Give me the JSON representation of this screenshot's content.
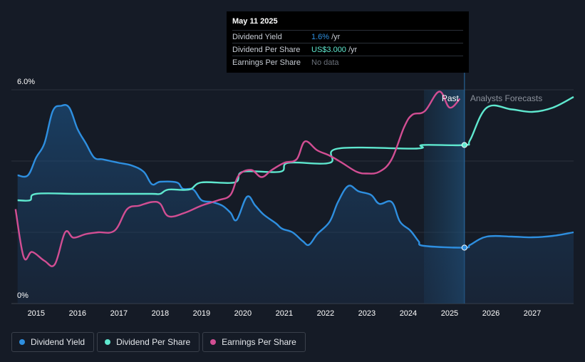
{
  "tooltip": {
    "date": "May 11 2025",
    "rows": [
      {
        "label": "Dividend Yield",
        "value": "1.6%",
        "unit": "/yr"
      },
      {
        "label": "Dividend Per Share",
        "value": "US$3.000",
        "unit": "/yr"
      },
      {
        "label": "Earnings Per Share",
        "value": "No data",
        "unit": ""
      }
    ]
  },
  "legend": [
    {
      "label": "Dividend Yield",
      "color": "#2e8fe0"
    },
    {
      "label": "Dividend Per Share",
      "color": "#5fe8cf"
    },
    {
      "label": "Earnings Per Share",
      "color": "#d24e93"
    }
  ],
  "chart_data": {
    "type": "line",
    "y_tick_labels": [
      "6.0%",
      "0%"
    ],
    "ylim": [
      0,
      6.0
    ],
    "xlim": [
      2014.4,
      2028.0
    ],
    "x_tick_labels": [
      "2015",
      "2016",
      "2017",
      "2018",
      "2019",
      "2020",
      "2021",
      "2022",
      "2023",
      "2024",
      "2025",
      "2026",
      "2027"
    ],
    "x_tick_values": [
      2015,
      2016,
      2017,
      2018,
      2019,
      2020,
      2021,
      2022,
      2023,
      2024,
      2025,
      2026,
      2027
    ],
    "region_labels": {
      "past": "Past",
      "forecast": "Analysts Forecasts"
    },
    "past_band": [
      2024.38,
      2025.36
    ],
    "current_x": 2025.36,
    "grid": "horizontal",
    "series": [
      {
        "name": "Dividend Yield",
        "color": "#2e8fe0",
        "fill": true,
        "points": [
          [
            2014.55,
            3.6
          ],
          [
            2014.8,
            3.6
          ],
          [
            2015.0,
            4.1
          ],
          [
            2015.2,
            4.5
          ],
          [
            2015.4,
            5.4
          ],
          [
            2015.6,
            5.55
          ],
          [
            2015.8,
            5.5
          ],
          [
            2016.0,
            4.9
          ],
          [
            2016.2,
            4.5
          ],
          [
            2016.4,
            4.1
          ],
          [
            2016.6,
            4.05
          ],
          [
            2016.8,
            4.0
          ],
          [
            2017.0,
            3.95
          ],
          [
            2017.3,
            3.88
          ],
          [
            2017.6,
            3.7
          ],
          [
            2017.8,
            3.35
          ],
          [
            2018.0,
            3.42
          ],
          [
            2018.4,
            3.4
          ],
          [
            2018.55,
            3.22
          ],
          [
            2018.8,
            3.2
          ],
          [
            2019.0,
            2.9
          ],
          [
            2019.25,
            2.85
          ],
          [
            2019.5,
            2.75
          ],
          [
            2019.7,
            2.55
          ],
          [
            2019.85,
            2.35
          ],
          [
            2020.1,
            3.0
          ],
          [
            2020.3,
            2.75
          ],
          [
            2020.5,
            2.5
          ],
          [
            2020.8,
            2.25
          ],
          [
            2020.95,
            2.1
          ],
          [
            2021.2,
            2.0
          ],
          [
            2021.45,
            1.75
          ],
          [
            2021.6,
            1.65
          ],
          [
            2021.8,
            1.95
          ],
          [
            2022.1,
            2.3
          ],
          [
            2022.3,
            2.85
          ],
          [
            2022.55,
            3.3
          ],
          [
            2022.8,
            3.15
          ],
          [
            2023.1,
            3.05
          ],
          [
            2023.3,
            2.8
          ],
          [
            2023.6,
            2.85
          ],
          [
            2023.8,
            2.3
          ],
          [
            2024.05,
            2.05
          ],
          [
            2024.25,
            1.75
          ],
          [
            2024.38,
            1.62
          ],
          [
            2025.36,
            1.57
          ],
          [
            2025.5,
            1.65
          ],
          [
            2025.9,
            1.88
          ],
          [
            2026.5,
            1.88
          ],
          [
            2027.0,
            1.86
          ],
          [
            2027.5,
            1.9
          ],
          [
            2028.0,
            2.0
          ]
        ]
      },
      {
        "name": "Dividend Per Share",
        "color": "#5fe8cf",
        "fill": false,
        "points": [
          [
            2014.55,
            2.9
          ],
          [
            2014.85,
            2.9
          ],
          [
            2015.0,
            3.08
          ],
          [
            2016.0,
            3.08
          ],
          [
            2017.0,
            3.08
          ],
          [
            2017.8,
            3.08
          ],
          [
            2018.0,
            3.08
          ],
          [
            2018.2,
            3.2
          ],
          [
            2018.7,
            3.2
          ],
          [
            2019.0,
            3.4
          ],
          [
            2019.8,
            3.4
          ],
          [
            2020.0,
            3.7
          ],
          [
            2020.9,
            3.7
          ],
          [
            2021.1,
            3.95
          ],
          [
            2022.1,
            3.95
          ],
          [
            2022.3,
            4.35
          ],
          [
            2024.2,
            4.35
          ],
          [
            2024.35,
            4.45
          ],
          [
            2025.36,
            4.45
          ],
          [
            2025.5,
            4.6
          ],
          [
            2025.9,
            5.5
          ],
          [
            2026.5,
            5.45
          ],
          [
            2027.0,
            5.38
          ],
          [
            2027.5,
            5.5
          ],
          [
            2028.0,
            5.8
          ]
        ]
      },
      {
        "name": "Earnings Per Share",
        "color": "#d24e93",
        "fill": false,
        "points": [
          [
            2014.5,
            2.65
          ],
          [
            2014.7,
            1.3
          ],
          [
            2014.9,
            1.45
          ],
          [
            2015.2,
            1.2
          ],
          [
            2015.45,
            1.1
          ],
          [
            2015.7,
            2.0
          ],
          [
            2015.9,
            1.85
          ],
          [
            2016.2,
            1.95
          ],
          [
            2016.5,
            2.0
          ],
          [
            2016.9,
            2.05
          ],
          [
            2017.2,
            2.65
          ],
          [
            2017.5,
            2.75
          ],
          [
            2017.8,
            2.85
          ],
          [
            2018.0,
            2.8
          ],
          [
            2018.2,
            2.45
          ],
          [
            2018.6,
            2.55
          ],
          [
            2019.0,
            2.75
          ],
          [
            2019.4,
            2.9
          ],
          [
            2019.7,
            3.05
          ],
          [
            2019.9,
            3.6
          ],
          [
            2020.2,
            3.75
          ],
          [
            2020.45,
            3.55
          ],
          [
            2020.7,
            3.75
          ],
          [
            2021.0,
            3.95
          ],
          [
            2021.3,
            4.05
          ],
          [
            2021.5,
            4.55
          ],
          [
            2021.8,
            4.3
          ],
          [
            2022.1,
            4.15
          ],
          [
            2022.4,
            3.95
          ],
          [
            2022.75,
            3.7
          ],
          [
            2023.0,
            3.65
          ],
          [
            2023.3,
            3.7
          ],
          [
            2023.6,
            4.05
          ],
          [
            2023.9,
            4.95
          ],
          [
            2024.1,
            5.3
          ],
          [
            2024.4,
            5.4
          ],
          [
            2024.75,
            5.95
          ],
          [
            2025.0,
            5.5
          ],
          [
            2025.25,
            5.75
          ]
        ]
      }
    ]
  }
}
